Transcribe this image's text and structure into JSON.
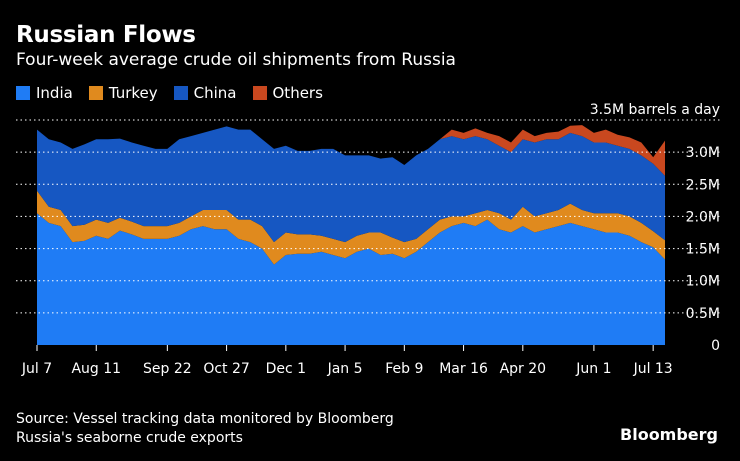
{
  "header": {
    "title": "Russian Flows",
    "subtitle": "Four-week average crude oil shipments from Russia"
  },
  "footer": {
    "source": "Source: Vessel tracking data monitored by Bloomberg",
    "note": "Russia's seaborne crude exports",
    "brand": "Bloomberg"
  },
  "colors": {
    "India": "#1f7cf5",
    "Turkey": "#e08a1e",
    "China": "#1657c2",
    "Others": "#c9481f",
    "gridline": "#ffffff",
    "background": "#000000"
  },
  "chart_data": {
    "type": "area",
    "stacked": true,
    "y_unit": "barrels a day",
    "ylim": [
      0,
      3500000
    ],
    "y_ticks": [
      {
        "value": 0,
        "label": "0"
      },
      {
        "value": 500000,
        "label": "0.5M"
      },
      {
        "value": 1000000,
        "label": "1.0M"
      },
      {
        "value": 1500000,
        "label": "1.5M"
      },
      {
        "value": 2000000,
        "label": "2.0M"
      },
      {
        "value": 2500000,
        "label": "2.5M"
      },
      {
        "value": 3000000,
        "label": "3.0M"
      },
      {
        "value": 3500000,
        "label": "3.5M barrels a day"
      }
    ],
    "x_tick_labels": [
      "Jul 7",
      "Aug 11",
      "Sep 22",
      "Oct 27",
      "Dec 1",
      "Jan 5",
      "Feb 9",
      "Mar 16",
      "Apr 20",
      "Jun 1",
      "Jul 13"
    ],
    "x_tick_index": [
      0,
      5,
      11,
      16,
      21,
      26,
      31,
      36,
      41,
      47,
      52
    ],
    "grid": true,
    "legend_position": "top-left",
    "series": [
      {
        "name": "India",
        "values": [
          2050000,
          1900000,
          1850000,
          1600000,
          1620000,
          1700000,
          1650000,
          1780000,
          1720000,
          1650000,
          1650000,
          1650000,
          1700000,
          1800000,
          1850000,
          1800000,
          1800000,
          1650000,
          1600000,
          1500000,
          1250000,
          1400000,
          1420000,
          1420000,
          1450000,
          1400000,
          1350000,
          1450000,
          1500000,
          1400000,
          1420000,
          1350000,
          1450000,
          1600000,
          1750000,
          1850000,
          1900000,
          1850000,
          1950000,
          1800000,
          1750000,
          1850000,
          1750000,
          1800000,
          1850000,
          1900000,
          1850000,
          1800000,
          1750000,
          1750000,
          1700000,
          1600000,
          1520000,
          1330000
        ]
      },
      {
        "name": "Turkey",
        "values": [
          350000,
          250000,
          250000,
          250000,
          250000,
          250000,
          250000,
          200000,
          200000,
          200000,
          200000,
          200000,
          200000,
          200000,
          250000,
          300000,
          300000,
          300000,
          350000,
          350000,
          350000,
          350000,
          300000,
          300000,
          250000,
          250000,
          250000,
          250000,
          250000,
          350000,
          250000,
          250000,
          200000,
          200000,
          200000,
          150000,
          100000,
          200000,
          150000,
          250000,
          200000,
          300000,
          250000,
          250000,
          250000,
          300000,
          250000,
          250000,
          300000,
          300000,
          300000,
          300000,
          250000,
          300000
        ]
      },
      {
        "name": "China",
        "values": [
          950000,
          1050000,
          1050000,
          1200000,
          1250000,
          1250000,
          1300000,
          1230000,
          1230000,
          1250000,
          1200000,
          1200000,
          1300000,
          1250000,
          1200000,
          1250000,
          1300000,
          1400000,
          1400000,
          1350000,
          1450000,
          1350000,
          1300000,
          1300000,
          1350000,
          1400000,
          1350000,
          1250000,
          1200000,
          1150000,
          1250000,
          1200000,
          1300000,
          1250000,
          1250000,
          1250000,
          1200000,
          1200000,
          1100000,
          1050000,
          1050000,
          1050000,
          1150000,
          1150000,
          1100000,
          1100000,
          1150000,
          1100000,
          1100000,
          1050000,
          1050000,
          1050000,
          1050000,
          1000000
        ]
      },
      {
        "name": "Others",
        "values": [
          0,
          0,
          0,
          0,
          0,
          0,
          0,
          0,
          0,
          0,
          0,
          0,
          0,
          0,
          0,
          0,
          0,
          0,
          0,
          0,
          0,
          0,
          0,
          0,
          0,
          0,
          0,
          0,
          0,
          0,
          0,
          0,
          0,
          0,
          0,
          100000,
          100000,
          120000,
          100000,
          150000,
          150000,
          150000,
          100000,
          100000,
          120000,
          110000,
          170000,
          150000,
          200000,
          170000,
          180000,
          200000,
          100000,
          550000
        ]
      }
    ]
  }
}
